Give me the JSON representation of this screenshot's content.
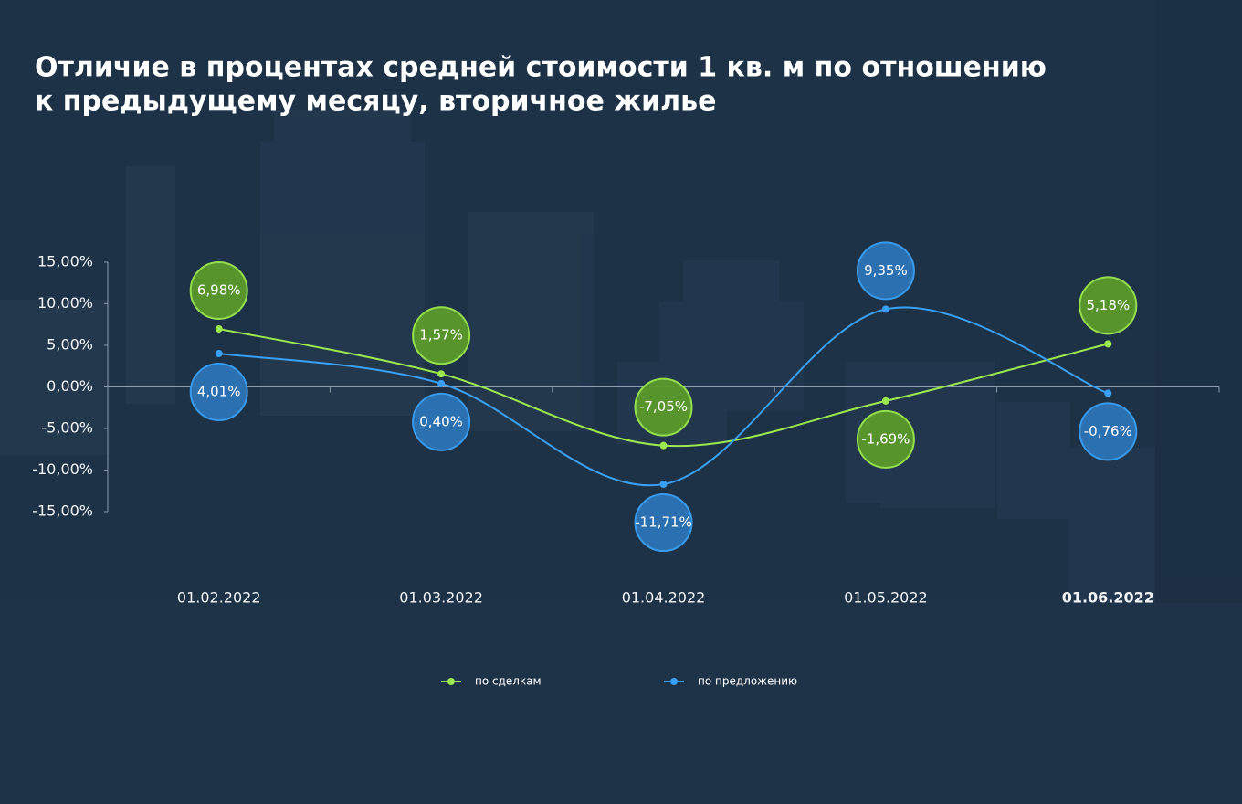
{
  "chart_data": {
    "type": "line",
    "title": [
      "Отличие в процентах средней стоимости 1 кв. м по отношению",
      "к предыдущему месяцу, вторичное жилье"
    ],
    "categories": [
      "01.02.2022",
      "01.03.2022",
      "01.04.2022",
      "01.05.2022",
      "01.06.2022"
    ],
    "series": [
      {
        "name": "по сделкам",
        "color": "#9be84f",
        "bubble": "#5b9a2b",
        "values": [
          6.98,
          1.57,
          -7.05,
          -1.69,
          5.18
        ],
        "value_labels": [
          "6,98%",
          "1,57%",
          "-7,05%",
          "-1,69%",
          "5,18%"
        ]
      },
      {
        "name": "по предложению",
        "color": "#3aa0f5",
        "bubble": "#2c74b6",
        "values": [
          4.01,
          0.4,
          -11.71,
          9.35,
          -0.76
        ],
        "value_labels": [
          "4,01%",
          "0,40%",
          "-11,71%",
          "9,35%",
          "-0,76%"
        ]
      }
    ],
    "ylim": [
      -15,
      15
    ],
    "yticks": [
      {
        "value": 15,
        "label": "15,00%"
      },
      {
        "value": 10,
        "label": "10,00%"
      },
      {
        "value": 5,
        "label": "5,00%"
      },
      {
        "value": 0,
        "label": "0,00%"
      },
      {
        "value": -5,
        "label": "-5,00%"
      },
      {
        "value": -10,
        "label": "-10,00%"
      },
      {
        "value": -15,
        "label": "-15,00%"
      }
    ]
  }
}
